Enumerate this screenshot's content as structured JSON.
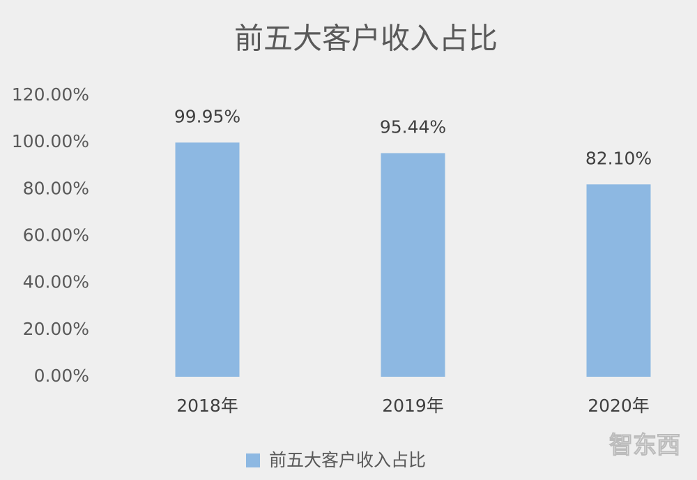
{
  "chart_data": {
    "type": "bar",
    "title": "前五大客户收入占比",
    "categories": [
      "2018年",
      "2019年",
      "2020年"
    ],
    "series": [
      {
        "name": "前五大客户收入占比",
        "color": "#8db8e2",
        "values": [
          99.95,
          95.44,
          82.1
        ],
        "value_labels": [
          "99.95%",
          "95.44%",
          "82.10%"
        ]
      }
    ],
    "ylim": [
      0,
      120
    ],
    "yticks": [
      {
        "value": 0,
        "label": "0.00%"
      },
      {
        "value": 20,
        "label": "20.00%"
      },
      {
        "value": 40,
        "label": "40.00%"
      },
      {
        "value": 60,
        "label": "60.00%"
      },
      {
        "value": 80,
        "label": "80.00%"
      },
      {
        "value": 100,
        "label": "100.00%"
      },
      {
        "value": 120,
        "label": "120.00%"
      }
    ],
    "grid": false,
    "legend": "bottom",
    "watermark": "智东西"
  }
}
